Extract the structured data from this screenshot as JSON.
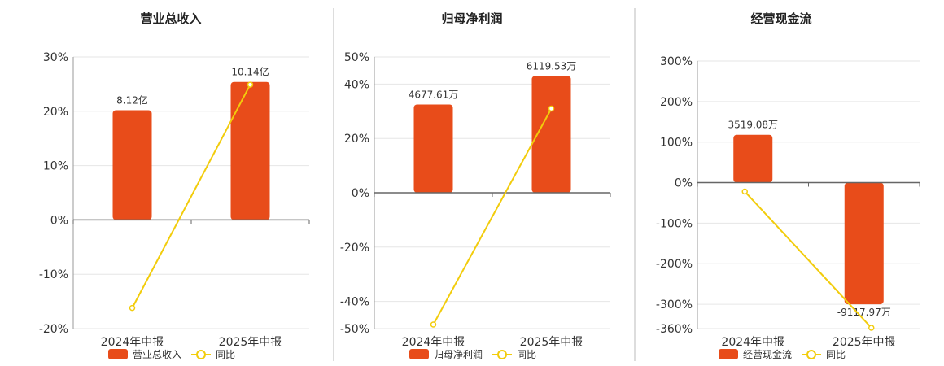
{
  "colors": {
    "bar": "#E84C1A",
    "line": "#F2CC0C",
    "grid": "#E6E6E6",
    "axis": "#666666",
    "divider": "#BBBBBB"
  },
  "legend": {
    "line_label": "同比"
  },
  "chart_data": [
    {
      "type": "bar",
      "title": "营业总收入",
      "categories": [
        "2024年中报",
        "2025年中报"
      ],
      "series": [
        {
          "name": "营业总收入",
          "type": "bar",
          "values": [
            20.2,
            25.4
          ],
          "labels": [
            "8.12亿",
            "10.14亿"
          ]
        },
        {
          "name": "同比",
          "type": "line",
          "values": [
            -16.2,
            24.9
          ]
        }
      ],
      "ylim": [
        -20,
        30
      ],
      "yticks": [
        -20,
        -10,
        0,
        10,
        20,
        30
      ],
      "ytick_labels": [
        "-20%",
        "-10%",
        "0%",
        "10%",
        "20%",
        "30%"
      ],
      "grid": true,
      "legend_position": "bottom"
    },
    {
      "type": "bar",
      "title": "归母净利润",
      "categories": [
        "2024年中报",
        "2025年中报"
      ],
      "series": [
        {
          "name": "归母净利润",
          "type": "bar",
          "values": [
            32.5,
            43.0
          ],
          "labels": [
            "4677.61万",
            "6119.53万"
          ]
        },
        {
          "name": "同比",
          "type": "line",
          "values": [
            -48.5,
            31.0
          ]
        }
      ],
      "ylim": [
        -50,
        50
      ],
      "yticks": [
        -50,
        -40,
        -20,
        0,
        20,
        40,
        50
      ],
      "ytick_labels": [
        "-50%",
        "-40%",
        "-20%",
        "0%",
        "20%",
        "40%",
        "50%"
      ],
      "grid": true,
      "legend_position": "bottom"
    },
    {
      "type": "bar",
      "title": "经营现金流",
      "categories": [
        "2024年中报",
        "2025年中报"
      ],
      "series": [
        {
          "name": "经营现金流",
          "type": "bar",
          "values": [
            118,
            -300
          ],
          "labels": [
            "3519.08万",
            "-9117.97万"
          ]
        },
        {
          "name": "同比",
          "type": "line",
          "values": [
            -22,
            -358
          ]
        }
      ],
      "ylim": [
        -360,
        300
      ],
      "yticks": [
        -360,
        -300,
        -200,
        -100,
        0,
        100,
        200,
        300
      ],
      "ytick_labels": [
        "-360%",
        "-300%",
        "-200%",
        "-100%",
        "0%",
        "100%",
        "200%",
        "300%"
      ],
      "grid": true,
      "legend_position": "bottom"
    }
  ]
}
